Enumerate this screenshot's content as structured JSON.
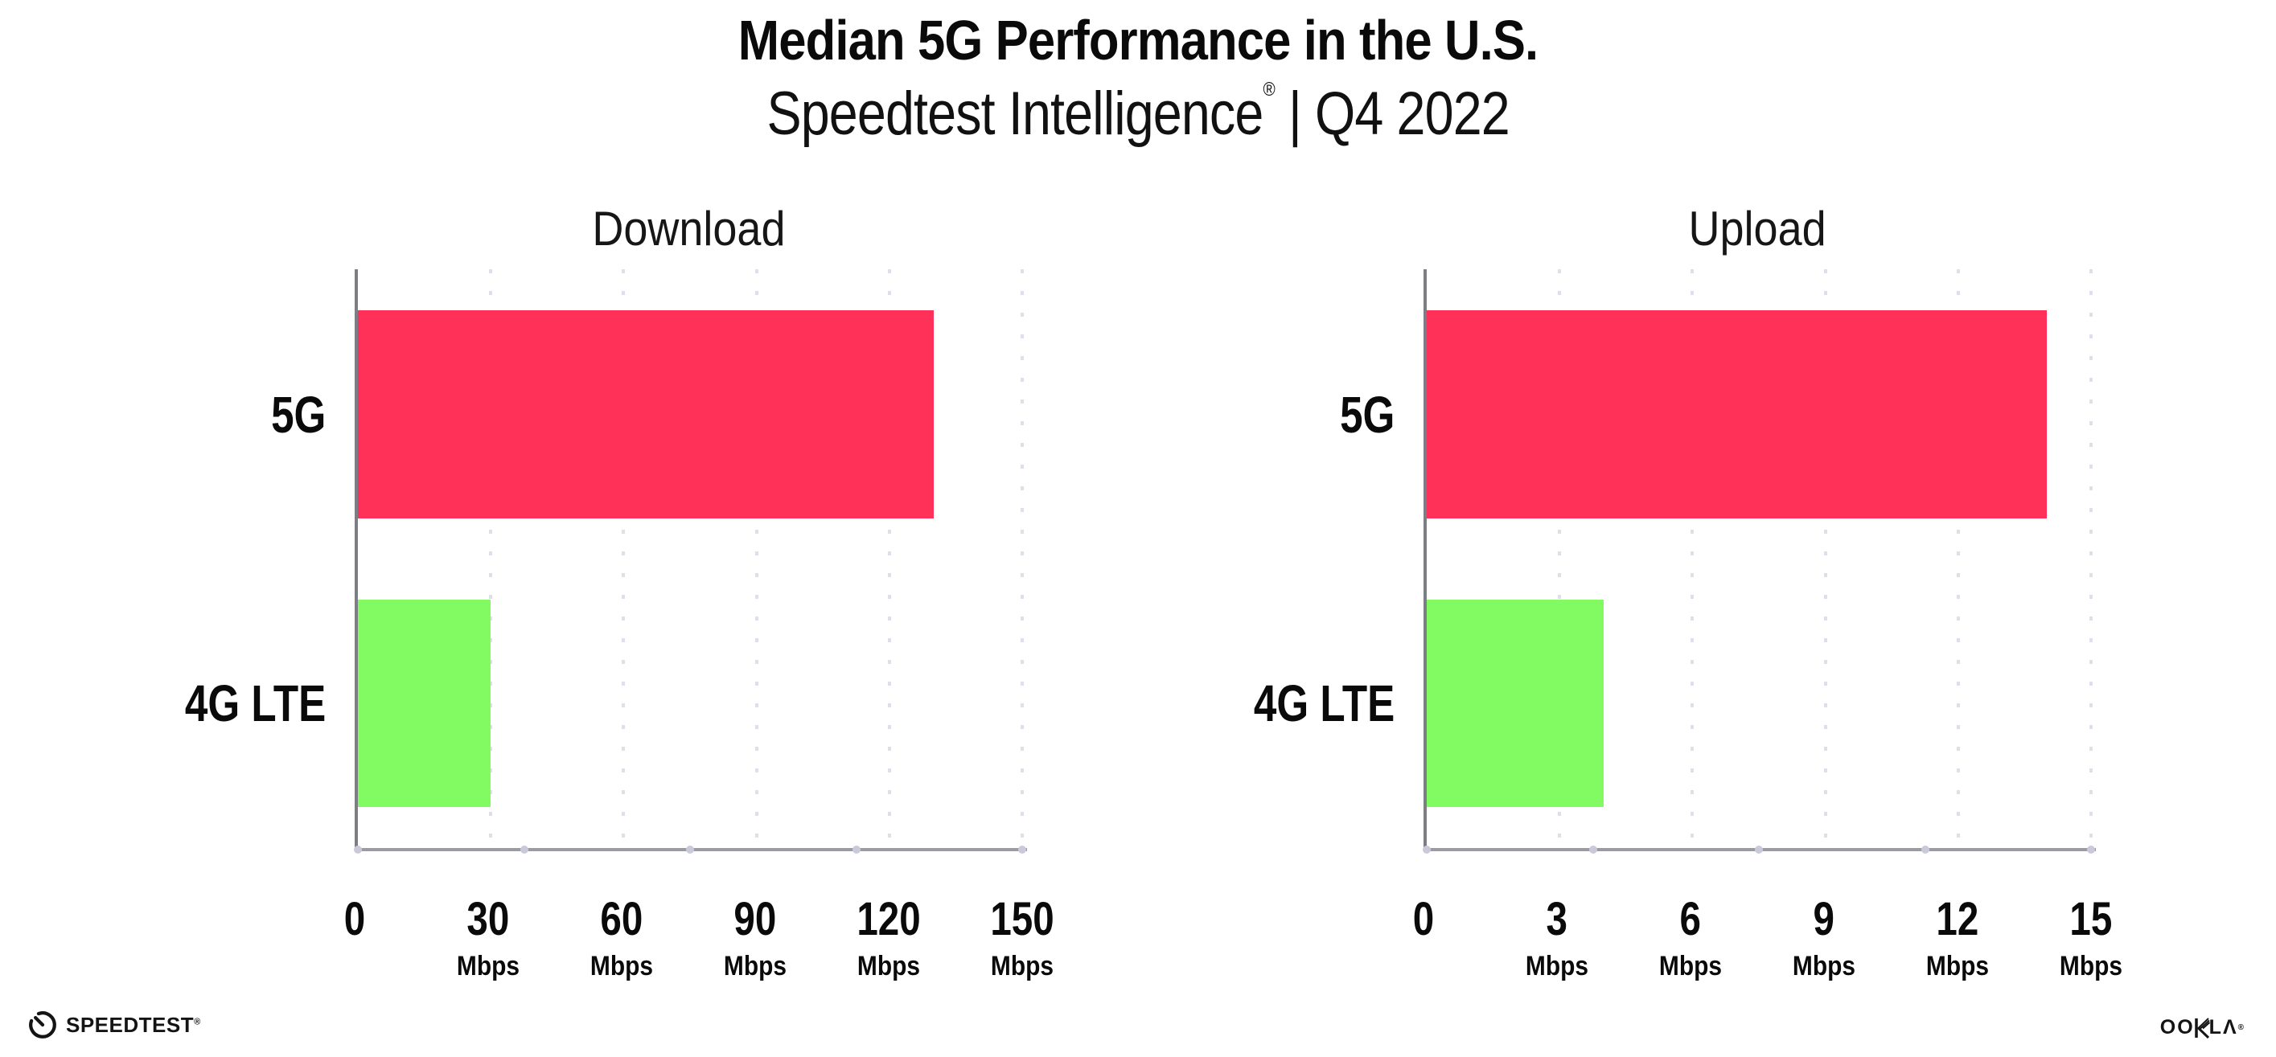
{
  "header": {
    "title": "Median 5G Performance in the U.S.",
    "subtitle_brand": "Speedtest Intelligence",
    "subtitle_mark": "®",
    "subtitle_rest": " | Q4 2022"
  },
  "colors": {
    "bar_5g": "#FF3158",
    "bar_4g_lte": "#82FB62",
    "x_axis_line": "#9B9BA3",
    "y_axis_line": "#7D7D85",
    "gridline_dots": "#DFDFE9",
    "text": "#0A0A0A"
  },
  "chart_data": [
    {
      "type": "bar",
      "orientation": "horizontal",
      "title": "Download",
      "categories": [
        "5G",
        "4G LTE"
      ],
      "values": [
        130,
        30
      ],
      "value_unit": "Mbps",
      "xlim": [
        0,
        150
      ],
      "xticks": [
        0,
        30,
        60,
        90,
        120,
        150
      ],
      "colors": [
        "#FF3158",
        "#82FB62"
      ],
      "grid": "dotted-vertical",
      "legend": "none",
      "tick_labels": [
        {
          "num": "0",
          "unit": ""
        },
        {
          "num": "30",
          "unit": "Mbps"
        },
        {
          "num": "60",
          "unit": "Mbps"
        },
        {
          "num": "90",
          "unit": "Mbps"
        },
        {
          "num": "120",
          "unit": "Mbps"
        },
        {
          "num": "150",
          "unit": "Mbps"
        }
      ]
    },
    {
      "type": "bar",
      "orientation": "horizontal",
      "title": "Upload",
      "categories": [
        "5G",
        "4G LTE"
      ],
      "values": [
        14,
        4
      ],
      "value_unit": "Mbps",
      "xlim": [
        0,
        15
      ],
      "xticks": [
        0,
        3,
        6,
        9,
        12,
        15
      ],
      "colors": [
        "#FF3158",
        "#82FB62"
      ],
      "grid": "dotted-vertical",
      "legend": "none",
      "tick_labels": [
        {
          "num": "0",
          "unit": ""
        },
        {
          "num": "3",
          "unit": "Mbps"
        },
        {
          "num": "6",
          "unit": "Mbps"
        },
        {
          "num": "9",
          "unit": "Mbps"
        },
        {
          "num": "12",
          "unit": "Mbps"
        },
        {
          "num": "15",
          "unit": "Mbps"
        }
      ]
    }
  ],
  "footer": {
    "speedtest_label": "SPEEDTEST",
    "speedtest_mark": "®",
    "ookla_left": "OO",
    "ookla_right": "LΛ",
    "ookla_mark": "®"
  }
}
